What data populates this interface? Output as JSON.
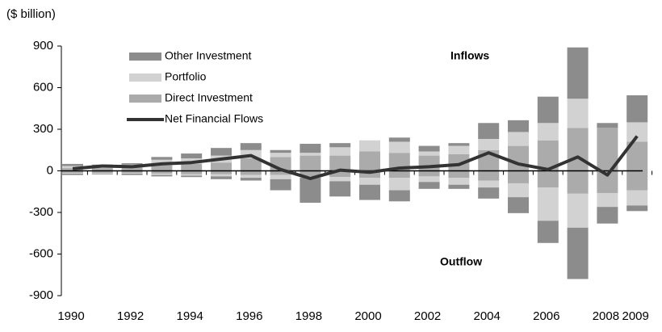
{
  "chart_data": {
    "type": "bar",
    "y_label": "($ billion)",
    "annotations": [
      "Inflows",
      "Outflow"
    ],
    "categories": [
      "1990",
      null,
      "1992",
      null,
      "1994",
      null,
      "1996",
      null,
      "1998",
      null,
      "2000",
      null,
      "2002",
      null,
      "2004",
      null,
      "2006",
      null,
      "2008",
      "2009"
    ],
    "series": [
      {
        "name": "Other Investment",
        "color": "#8c8c8c",
        "inflows": [
          15,
          10,
          10,
          20,
          35,
          55,
          50,
          20,
          65,
          30,
          0,
          30,
          40,
          20,
          115,
          85,
          190,
          370,
          35,
          195
        ],
        "outflows": [
          -10,
          -5,
          -10,
          -10,
          -10,
          -20,
          -20,
          -80,
          -180,
          -110,
          -110,
          -80,
          -50,
          -30,
          -80,
          -115,
          -160,
          -370,
          -120,
          -40
        ]
      },
      {
        "name": "Portfolio",
        "color": "#d2d2d2",
        "inflows": [
          15,
          15,
          20,
          40,
          40,
          50,
          60,
          30,
          20,
          60,
          80,
          80,
          30,
          60,
          80,
          100,
          125,
          210,
          0,
          140
        ],
        "outflows": [
          -5,
          -5,
          -5,
          -10,
          -10,
          -15,
          -20,
          -30,
          -10,
          -30,
          -50,
          -90,
          -40,
          -50,
          -50,
          -100,
          -240,
          -245,
          -100,
          -110
        ]
      },
      {
        "name": "Direct Investment",
        "color": "#ababab",
        "inflows": [
          20,
          20,
          25,
          40,
          50,
          60,
          90,
          100,
          110,
          110,
          140,
          130,
          110,
          120,
          150,
          180,
          220,
          310,
          310,
          210
        ],
        "outflows": [
          -15,
          -15,
          -15,
          -20,
          -25,
          -25,
          -30,
          -30,
          -40,
          -45,
          -50,
          -50,
          -40,
          -50,
          -70,
          -90,
          -120,
          -165,
          -160,
          -140
        ]
      }
    ],
    "line": {
      "name": "Net Financial Flows",
      "color": "#333333",
      "values": [
        15,
        35,
        30,
        50,
        60,
        85,
        110,
        10,
        -55,
        5,
        -10,
        20,
        30,
        45,
        130,
        50,
        10,
        100,
        -30,
        250
      ]
    },
    "ylim": [
      -900,
      900
    ],
    "yticks": [
      900,
      600,
      300,
      0,
      -300,
      -600,
      -900
    ]
  }
}
